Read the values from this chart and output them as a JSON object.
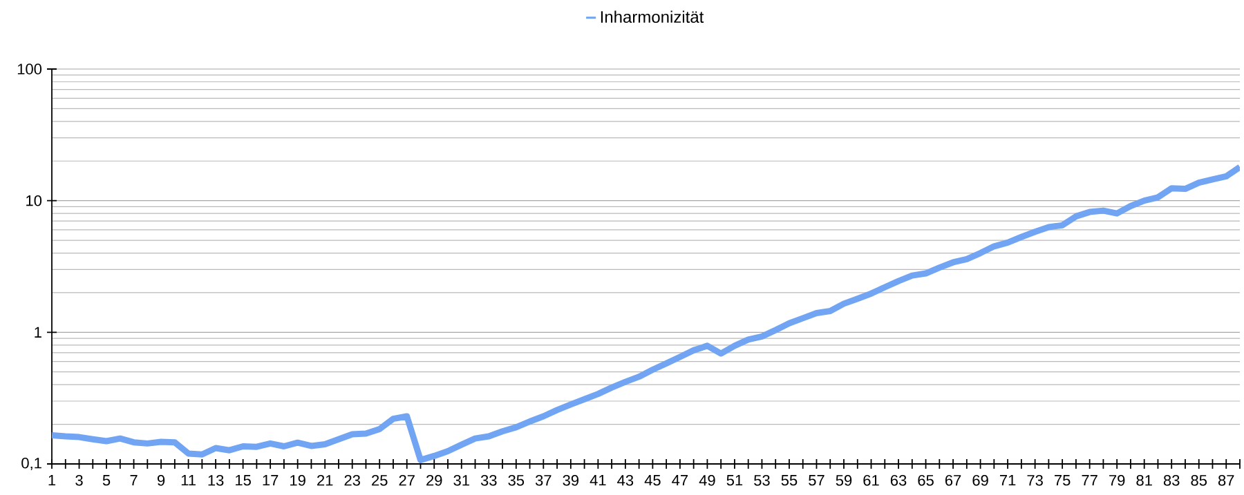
{
  "chart_data": {
    "type": "line",
    "categories": [
      "1",
      null,
      "3",
      null,
      "5",
      null,
      "7",
      null,
      "9",
      null,
      "11",
      null,
      "13",
      null,
      "15",
      null,
      "17",
      null,
      "19",
      null,
      "21",
      null,
      "23",
      null,
      "25",
      null,
      "27",
      null,
      "29",
      null,
      "31",
      null,
      "33",
      null,
      "35",
      null,
      "37",
      null,
      "39",
      null,
      "41",
      null,
      "43",
      null,
      "45",
      null,
      "47",
      null,
      "49",
      null,
      "51",
      null,
      "53",
      null,
      "55",
      null,
      "57",
      null,
      "59",
      null,
      "61",
      null,
      "63",
      null,
      "65",
      null,
      "67",
      null,
      "69",
      null,
      "71",
      null,
      "73",
      null,
      "75",
      null,
      "77",
      null,
      "79",
      null,
      "81",
      null,
      "83",
      null,
      "85",
      null,
      "87",
      null
    ],
    "series": [
      {
        "name": "Inharmonizität",
        "color": "#72a4f4",
        "values": [
          0.165,
          0.162,
          0.16,
          0.154,
          0.149,
          0.156,
          0.146,
          0.143,
          0.147,
          0.146,
          0.12,
          0.118,
          0.132,
          0.127,
          0.136,
          0.135,
          0.143,
          0.136,
          0.145,
          0.137,
          0.141,
          0.154,
          0.168,
          0.17,
          0.184,
          0.22,
          0.23,
          0.107,
          0.115,
          0.125,
          0.14,
          0.156,
          0.162,
          0.177,
          0.19,
          0.21,
          0.23,
          0.257,
          0.283,
          0.31,
          0.34,
          0.38,
          0.42,
          0.46,
          0.52,
          0.58,
          0.65,
          0.73,
          0.79,
          0.69,
          0.79,
          0.88,
          0.93,
          1.04,
          1.17,
          1.28,
          1.4,
          1.45,
          1.65,
          1.8,
          1.97,
          2.2,
          2.45,
          2.7,
          2.8,
          3.1,
          3.4,
          3.6,
          4.0,
          4.5,
          4.8,
          5.3,
          5.8,
          6.3,
          6.5,
          7.6,
          8.2,
          8.4,
          8.0,
          9.1,
          10,
          10.6,
          12.4,
          12.3,
          13.7,
          14.5,
          15.3,
          18
        ]
      }
    ],
    "ylim": [
      0.1,
      100
    ],
    "yticks": [
      {
        "value": 0.1,
        "label": "0,1"
      },
      1,
      10,
      100
    ],
    "log": true,
    "grid": "y",
    "legend": "top",
    "marker": "none",
    "line_style": "solid"
  }
}
